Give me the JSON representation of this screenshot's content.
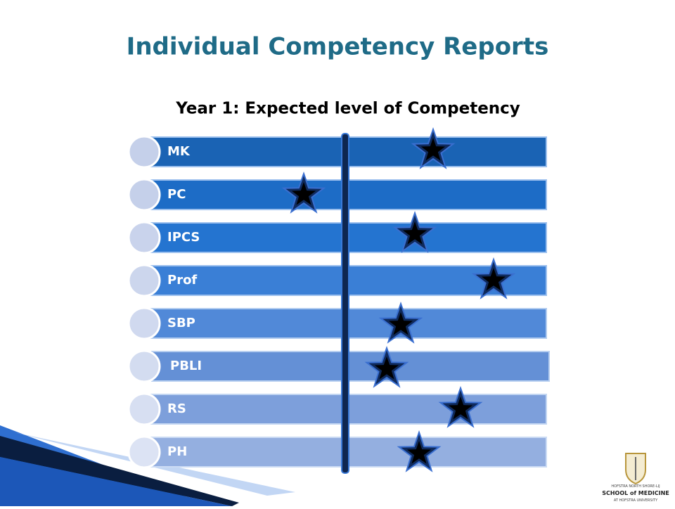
{
  "title": "Individual Competency Reports",
  "subtitle": "Year 1: Expected level of Competency",
  "rows": [
    {
      "label": "MK"
    },
    {
      "label": "PC"
    },
    {
      "label": "IPCS"
    },
    {
      "label": "Prof"
    },
    {
      "label": "SBP"
    },
    {
      "label": "PBLI"
    },
    {
      "label": "RS"
    },
    {
      "label": "PH"
    }
  ],
  "logo": {
    "line1": "HOFSTRA NORTH SHORE-LIJ",
    "line2": "SCHOOL of MEDICINE",
    "line3": "AT HOFSTRA UNIVERSITY"
  }
}
